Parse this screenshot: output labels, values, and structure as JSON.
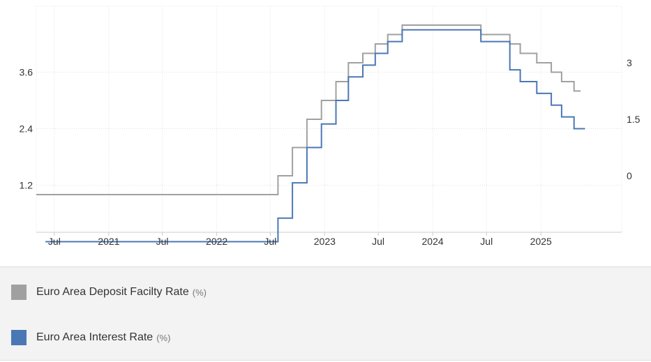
{
  "chart_data": {
    "type": "line",
    "x_tick_labels": [
      "Jul",
      "2021",
      "Jul",
      "2022",
      "Jul",
      "2023",
      "Jul",
      "2024",
      "Jul",
      "2025"
    ],
    "x_tick_dates": [
      "2020-07-01",
      "2021-01-01",
      "2021-07-01",
      "2022-01-01",
      "2022-07-01",
      "2023-01-01",
      "2023-07-01",
      "2024-01-01",
      "2024-07-01",
      "2025-01-01"
    ],
    "x_range": [
      "2020-05-01",
      "2025-10-01"
    ],
    "left_axis": {
      "ticks": [
        1.2,
        2.4,
        3.6
      ],
      "range": [
        0.2,
        5.0
      ]
    },
    "right_axis": {
      "ticks": [
        0,
        1.5,
        3
      ],
      "range": [
        -1.5,
        4.5
      ]
    },
    "grid": true,
    "legend_position": "bottom",
    "series": [
      {
        "name": "Euro Area Deposit Facilty Rate",
        "unit": "(%)",
        "axis": "right",
        "color": "#a0a0a0",
        "steps": [
          {
            "date": "2020-05-01",
            "value": -0.5
          },
          {
            "date": "2022-07-27",
            "value": 0.0
          },
          {
            "date": "2022-09-14",
            "value": 0.75
          },
          {
            "date": "2022-11-02",
            "value": 1.5
          },
          {
            "date": "2022-12-21",
            "value": 2.0
          },
          {
            "date": "2023-02-08",
            "value": 2.5
          },
          {
            "date": "2023-03-22",
            "value": 3.0
          },
          {
            "date": "2023-05-10",
            "value": 3.25
          },
          {
            "date": "2023-06-21",
            "value": 3.5
          },
          {
            "date": "2023-08-02",
            "value": 3.75
          },
          {
            "date": "2023-09-20",
            "value": 4.0
          },
          {
            "date": "2024-06-12",
            "value": 3.75
          },
          {
            "date": "2024-09-18",
            "value": 3.5
          },
          {
            "date": "2024-10-23",
            "value": 3.25
          },
          {
            "date": "2024-12-18",
            "value": 3.0
          },
          {
            "date": "2025-02-05",
            "value": 2.75
          },
          {
            "date": "2025-03-12",
            "value": 2.5
          },
          {
            "date": "2025-04-23",
            "value": 2.25
          },
          {
            "date": "2025-05-15",
            "value": 2.25
          }
        ]
      },
      {
        "name": "Euro Area Interest Rate",
        "unit": "(%)",
        "axis": "left",
        "color": "#4a78b5",
        "steps": [
          {
            "date": "2020-06-01",
            "value": 0.0
          },
          {
            "date": "2022-07-27",
            "value": 0.5
          },
          {
            "date": "2022-09-14",
            "value": 1.25
          },
          {
            "date": "2022-11-02",
            "value": 2.0
          },
          {
            "date": "2022-12-21",
            "value": 2.5
          },
          {
            "date": "2023-02-08",
            "value": 3.0
          },
          {
            "date": "2023-03-22",
            "value": 3.5
          },
          {
            "date": "2023-05-10",
            "value": 3.75
          },
          {
            "date": "2023-06-21",
            "value": 4.0
          },
          {
            "date": "2023-08-02",
            "value": 4.25
          },
          {
            "date": "2023-09-20",
            "value": 4.5
          },
          {
            "date": "2024-06-12",
            "value": 4.25
          },
          {
            "date": "2024-09-18",
            "value": 3.65
          },
          {
            "date": "2024-10-23",
            "value": 3.4
          },
          {
            "date": "2024-12-18",
            "value": 3.15
          },
          {
            "date": "2025-02-05",
            "value": 2.9
          },
          {
            "date": "2025-03-12",
            "value": 2.65
          },
          {
            "date": "2025-04-23",
            "value": 2.4
          },
          {
            "date": "2025-05-30",
            "value": 2.4
          }
        ]
      }
    ]
  }
}
